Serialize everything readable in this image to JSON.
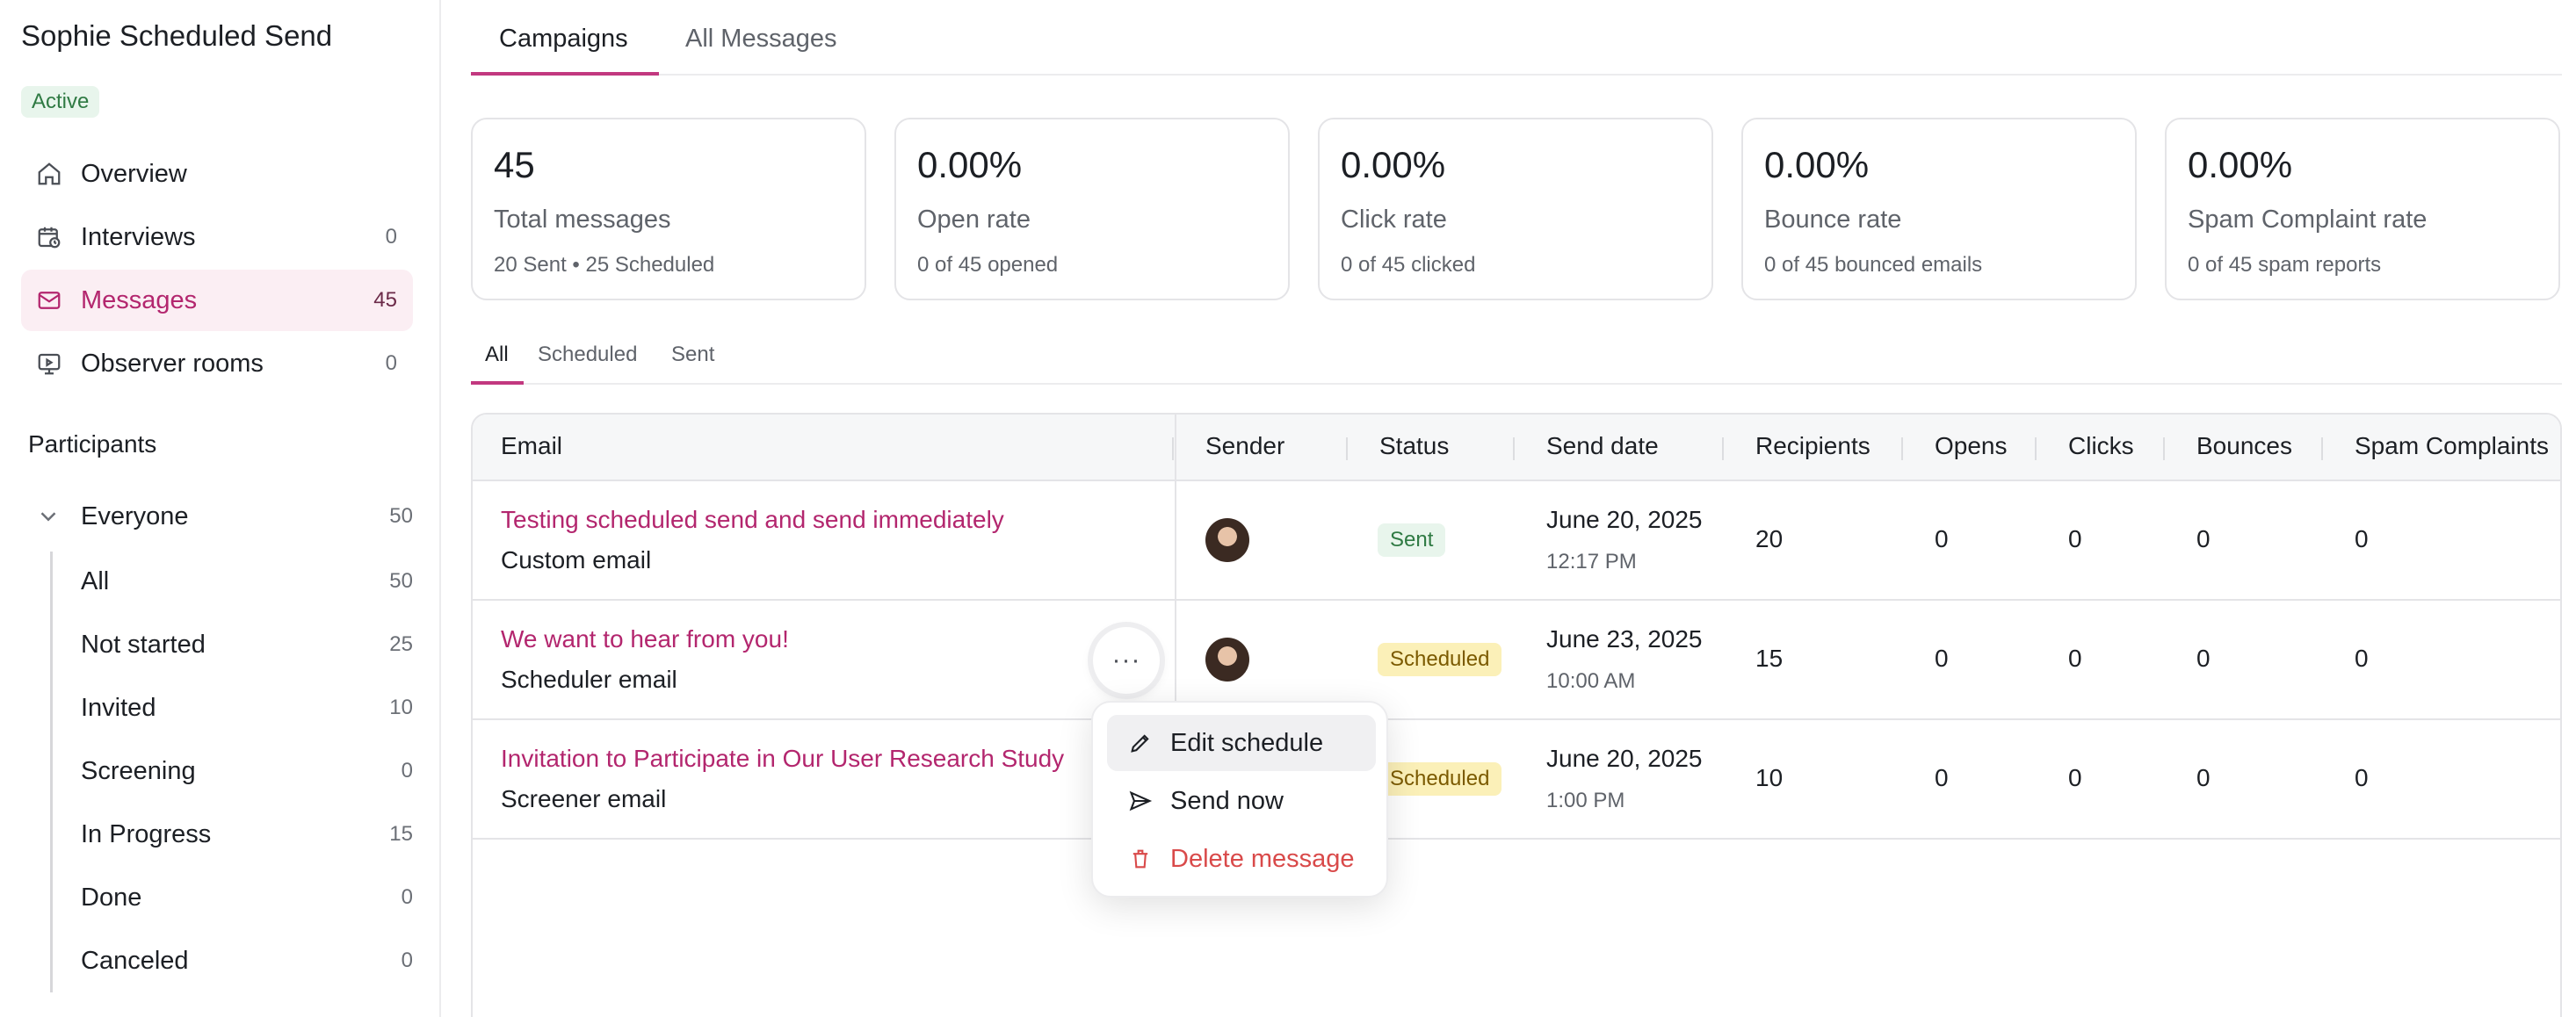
{
  "sidebar": {
    "title": "Sophie Scheduled Send",
    "status": "Active",
    "nav": [
      {
        "label": "Overview",
        "count": "",
        "icon": "home-icon"
      },
      {
        "label": "Interviews",
        "count": "0",
        "icon": "calendar-clock-icon"
      },
      {
        "label": "Messages",
        "count": "45",
        "icon": "mail-icon"
      },
      {
        "label": "Observer rooms",
        "count": "0",
        "icon": "video-room-icon"
      }
    ],
    "participants_title": "Participants",
    "group": {
      "label": "Everyone",
      "count": "50"
    },
    "sub": [
      {
        "label": "All",
        "count": "50"
      },
      {
        "label": "Not started",
        "count": "25"
      },
      {
        "label": "Invited",
        "count": "10"
      },
      {
        "label": "Screening",
        "count": "0"
      },
      {
        "label": "In Progress",
        "count": "15"
      },
      {
        "label": "Done",
        "count": "0"
      },
      {
        "label": "Canceled",
        "count": "0"
      }
    ]
  },
  "tabs": {
    "campaigns": "Campaigns",
    "all_messages": "All Messages"
  },
  "stats": [
    {
      "value": "45",
      "label": "Total messages",
      "sub": "20 Sent • 25 Scheduled"
    },
    {
      "value": "0.00%",
      "label": "Open rate",
      "sub": "0 of 45 opened"
    },
    {
      "value": "0.00%",
      "label": "Click rate",
      "sub": "0 of 45 clicked"
    },
    {
      "value": "0.00%",
      "label": "Bounce rate",
      "sub": "0 of 45 bounced emails"
    },
    {
      "value": "0.00%",
      "label": "Spam Complaint rate",
      "sub": "0 of 45 spam reports"
    }
  ],
  "subtabs": {
    "all": "All",
    "scheduled": "Scheduled",
    "sent": "Sent"
  },
  "table": {
    "headers": {
      "email": "Email",
      "sender": "Sender",
      "status": "Status",
      "send_date": "Send date",
      "recipients": "Recipients",
      "opens": "Opens",
      "clicks": "Clicks",
      "bounces": "Bounces",
      "spam": "Spam Complaints"
    },
    "rows": [
      {
        "subject": "Testing scheduled send and send immediately",
        "type": "Custom email",
        "status": "Sent",
        "date": "June 20, 2025",
        "time": "12:17 PM",
        "recipients": "20",
        "opens": "0",
        "clicks": "0",
        "bounces": "0",
        "spam": "0"
      },
      {
        "subject": "We want to hear from you!",
        "type": "Scheduler email",
        "status": "Scheduled",
        "date": "June 23, 2025",
        "time": "10:00 AM",
        "recipients": "15",
        "opens": "0",
        "clicks": "0",
        "bounces": "0",
        "spam": "0"
      },
      {
        "subject": "Invitation to Participate in Our User Research Study",
        "type": "Screener email",
        "status": "Scheduled",
        "date": "June 20, 2025",
        "time": "1:00 PM",
        "recipients": "10",
        "opens": "0",
        "clicks": "0",
        "bounces": "0",
        "spam": "0"
      }
    ]
  },
  "more_button": "···",
  "menu": {
    "edit": "Edit schedule",
    "send": "Send now",
    "delete": "Delete message"
  },
  "colors": {
    "accent": "#c2387f",
    "danger": "#d94a4a",
    "sent_bg": "#e8f5ec",
    "scheduled_bg": "#fbf0b8"
  }
}
